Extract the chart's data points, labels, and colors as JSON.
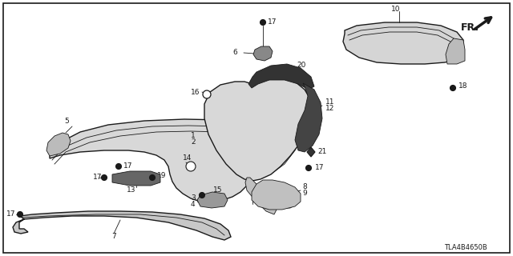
{
  "background_color": "#ffffff",
  "diagram_code": "TLA4B4650B",
  "fr_label": "FR.",
  "figsize": [
    6.4,
    3.2
  ],
  "dpi": 100,
  "line_color": "#1a1a1a",
  "part_color": "#e0e0e0",
  "dark_part_color": "#555555",
  "mid_part_color": "#aaaaaa"
}
